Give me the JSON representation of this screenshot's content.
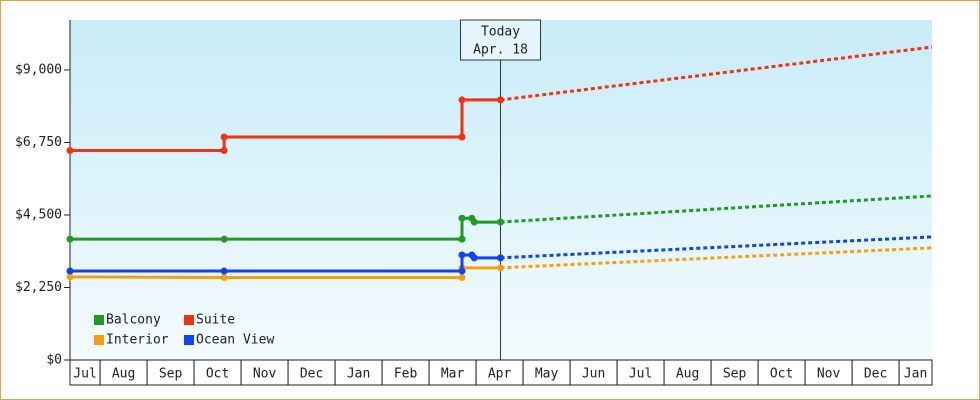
{
  "chart_data": {
    "type": "line",
    "categories": [
      "Jul",
      "Aug",
      "Sep",
      "Oct",
      "Nov",
      "Dec",
      "Jan",
      "Feb",
      "Mar",
      "Apr",
      "May",
      "Jun",
      "Jul",
      "Aug",
      "Sep",
      "Oct",
      "Nov",
      "Dec",
      "Jan"
    ],
    "xlim": [
      0.36,
      18.7
    ],
    "ylim": [
      0,
      10550
    ],
    "yticks": [
      {
        "value": 0,
        "label": "$0"
      },
      {
        "value": 2250,
        "label": "$2,250"
      },
      {
        "value": 4500,
        "label": "$4,500"
      },
      {
        "value": 6750,
        "label": "$6,750"
      },
      {
        "value": 9000,
        "label": "$9,000"
      }
    ],
    "today": {
      "x": 9.52,
      "label": [
        "Today",
        "Apr. 18"
      ]
    },
    "legend": "bottom-left",
    "series": [
      {
        "name": "Balcony",
        "color": "#229922",
        "x": [
          0.36,
          3.64,
          8.7,
          8.7,
          8.91,
          8.96,
          9.52
        ],
        "values": [
          3750,
          3750,
          3750,
          4400,
          4400,
          4280,
          4280
        ],
        "forecast": {
          "x": [
            9.52,
            18.7
          ],
          "values": [
            4280,
            5090
          ]
        }
      },
      {
        "name": "Suite",
        "color": "#ee3311",
        "x": [
          0.36,
          3.64,
          3.64,
          8.7,
          8.7,
          9.52
        ],
        "values": [
          6500,
          6500,
          6920,
          6920,
          8070,
          8070
        ],
        "forecast": {
          "x": [
            9.52,
            18.7
          ],
          "values": [
            8070,
            9710
          ]
        }
      },
      {
        "name": "Interior",
        "color": "#f5a010",
        "x": [
          0.36,
          3.64,
          8.7,
          8.7,
          9.52
        ],
        "values": [
          2580,
          2560,
          2560,
          2860,
          2860
        ],
        "forecast": {
          "x": [
            9.52,
            18.7
          ],
          "values": [
            2860,
            3480
          ]
        }
      },
      {
        "name": "Ocean View",
        "color": "#1144ee",
        "x": [
          0.36,
          3.64,
          8.7,
          8.7,
          8.91,
          8.96,
          9.52
        ],
        "values": [
          2760,
          2760,
          2760,
          3260,
          3260,
          3170,
          3170
        ],
        "forecast": {
          "x": [
            9.52,
            18.7
          ],
          "values": [
            3170,
            3820
          ]
        }
      }
    ]
  }
}
